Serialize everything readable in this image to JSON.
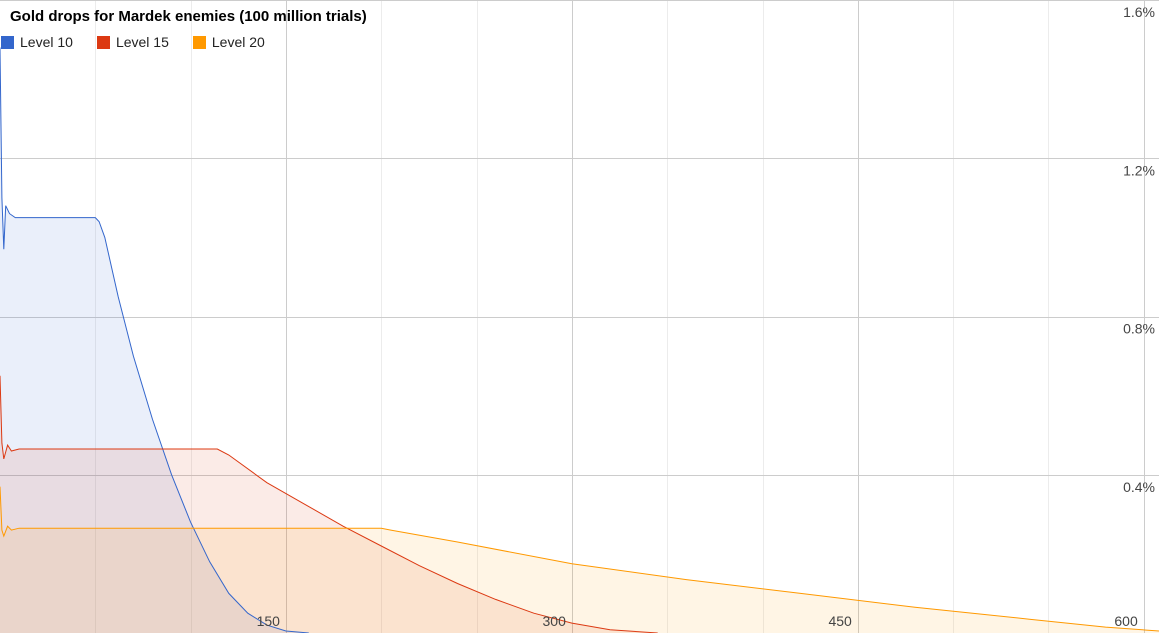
{
  "chart_data": {
    "type": "area",
    "title": "Gold drops for Mardek enemies (100 million trials)",
    "xlabel": "",
    "ylabel": "",
    "xlim": [
      0,
      608
    ],
    "ylim": [
      0,
      1.6
    ],
    "x_ticks": [
      150,
      300,
      450,
      600
    ],
    "x_tick_labels": [
      "150",
      "300",
      "450",
      "600"
    ],
    "minor_x_gridlines": [
      50,
      100,
      200,
      250,
      350,
      400,
      500,
      550
    ],
    "y_ticks": [
      0.4,
      0.8,
      1.2,
      1.6
    ],
    "y_tick_labels": [
      "0.4%",
      "0.8%",
      "1.2%",
      "1.6%"
    ],
    "y_unit": "%",
    "grid": true,
    "legend_position": "top-left",
    "series": [
      {
        "name": "Level 10",
        "color": "#3366cc",
        "fill": "#e9eefa",
        "points": [
          [
            0,
            1.48
          ],
          [
            1,
            1.1
          ],
          [
            2,
            0.97
          ],
          [
            3,
            1.08
          ],
          [
            5,
            1.06
          ],
          [
            8,
            1.05
          ],
          [
            50,
            1.05
          ],
          [
            52,
            1.04
          ],
          [
            55,
            1.0
          ],
          [
            62,
            0.85
          ],
          [
            70,
            0.7
          ],
          [
            80,
            0.54
          ],
          [
            90,
            0.4
          ],
          [
            100,
            0.28
          ],
          [
            110,
            0.18
          ],
          [
            120,
            0.1
          ],
          [
            130,
            0.05
          ],
          [
            140,
            0.02
          ],
          [
            150,
            0.005
          ],
          [
            162,
            0.0
          ]
        ]
      },
      {
        "name": "Level 15",
        "color": "#dc3912",
        "fill": "#fce5e1",
        "points": [
          [
            0,
            0.65
          ],
          [
            1,
            0.48
          ],
          [
            2,
            0.44
          ],
          [
            4,
            0.475
          ],
          [
            6,
            0.46
          ],
          [
            10,
            0.465
          ],
          [
            114,
            0.465
          ],
          [
            120,
            0.45
          ],
          [
            140,
            0.38
          ],
          [
            160,
            0.325
          ],
          [
            180,
            0.27
          ],
          [
            200,
            0.22
          ],
          [
            220,
            0.17
          ],
          [
            240,
            0.125
          ],
          [
            260,
            0.085
          ],
          [
            280,
            0.05
          ],
          [
            300,
            0.025
          ],
          [
            320,
            0.008
          ],
          [
            345,
            0.0
          ]
        ]
      },
      {
        "name": "Level 20",
        "color": "#ff9900",
        "fill": "#fef0d9",
        "points": [
          [
            0,
            0.37
          ],
          [
            1,
            0.26
          ],
          [
            2,
            0.245
          ],
          [
            4,
            0.27
          ],
          [
            6,
            0.26
          ],
          [
            10,
            0.265
          ],
          [
            200,
            0.265
          ],
          [
            205,
            0.26
          ],
          [
            240,
            0.23
          ],
          [
            300,
            0.175
          ],
          [
            360,
            0.135
          ],
          [
            420,
            0.1
          ],
          [
            480,
            0.065
          ],
          [
            540,
            0.035
          ],
          [
            580,
            0.015
          ],
          [
            608,
            0.005
          ]
        ]
      }
    ]
  }
}
